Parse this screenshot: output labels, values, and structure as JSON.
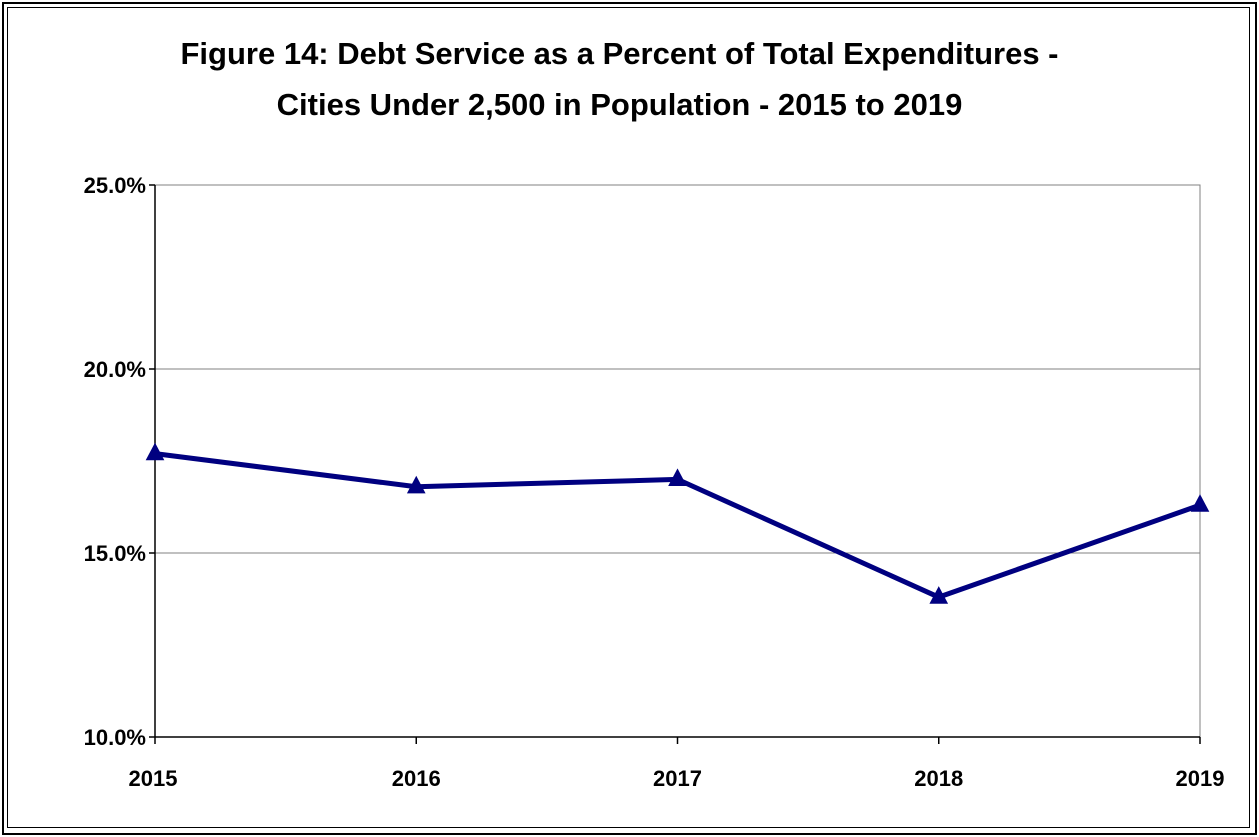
{
  "chart_data": {
    "type": "line",
    "title_line1": "Figure 14:  Debt Service as a Percent of Total Expenditures -",
    "title_line2": "Cities Under 2,500 in Population - 2015 to 2019",
    "xlabel": "",
    "ylabel": "",
    "categories": [
      "2015",
      "2016",
      "2017",
      "2018",
      "2019"
    ],
    "series": [
      {
        "values": [
          17.7,
          16.8,
          17.0,
          13.8,
          16.3
        ],
        "color": "#000080",
        "marker": "triangle"
      }
    ],
    "ylim": [
      10.0,
      25.0
    ],
    "yticks": [
      10.0,
      15.0,
      20.0,
      25.0
    ],
    "ytick_labels": [
      "10.0%",
      "15.0%",
      "20.0%",
      "25.0%"
    ],
    "grid": true,
    "legend": "none"
  }
}
